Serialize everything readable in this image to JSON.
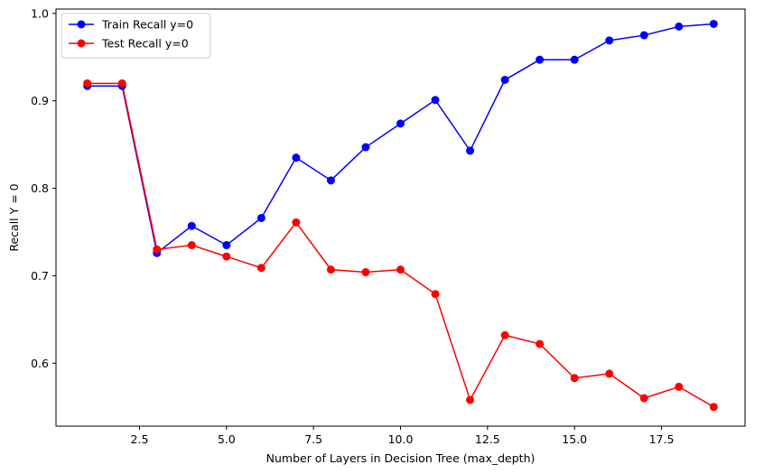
{
  "chart_data": {
    "type": "line",
    "title": "",
    "xlabel": "Number of Layers in Decision Tree (max_depth)",
    "ylabel": "Recall Y = 0",
    "xlim": [
      0.1,
      19.9
    ],
    "ylim": [
      0.528,
      1.005
    ],
    "x_ticks": [
      2.5,
      5.0,
      7.5,
      10.0,
      12.5,
      15.0,
      17.5
    ],
    "x_tick_labels": [
      "2.5",
      "5.0",
      "7.5",
      "10.0",
      "12.5",
      "15.0",
      "17.5"
    ],
    "y_ticks": [
      0.6,
      0.7,
      0.8,
      0.9,
      1.0
    ],
    "y_tick_labels": [
      "0.6",
      "0.7",
      "0.8",
      "0.9",
      "1.0"
    ],
    "grid": false,
    "legend_position": "top-left",
    "x": [
      1,
      2,
      3,
      4,
      5,
      6,
      7,
      8,
      9,
      10,
      11,
      12,
      13,
      14,
      15,
      16,
      17,
      18,
      19
    ],
    "series": [
      {
        "name": "Train Recall y=0",
        "color": "#0000ff",
        "values": [
          0.917,
          0.917,
          0.726,
          0.757,
          0.735,
          0.766,
          0.835,
          0.809,
          0.847,
          0.874,
          0.901,
          0.843,
          0.924,
          0.947,
          0.947,
          0.969,
          0.975,
          0.985,
          0.988
        ]
      },
      {
        "name": "Test Recall y=0",
        "color": "#ff0000",
        "values": [
          0.92,
          0.92,
          0.73,
          0.735,
          0.722,
          0.709,
          0.761,
          0.707,
          0.704,
          0.707,
          0.679,
          0.558,
          0.632,
          0.622,
          0.583,
          0.588,
          0.56,
          0.573,
          0.55
        ]
      }
    ]
  }
}
